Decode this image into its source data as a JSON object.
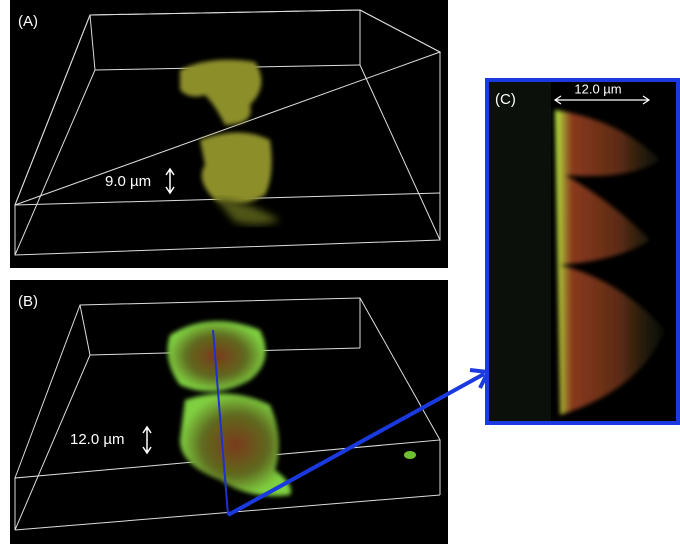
{
  "panels": [
    {
      "label": "(A)",
      "scale_label": "9.0 µm"
    },
    {
      "label": "(B)",
      "scale_label": "12.0 µm"
    },
    {
      "label": "(C)",
      "scale_label": "12.0 µm"
    }
  ]
}
